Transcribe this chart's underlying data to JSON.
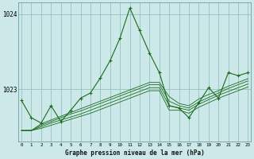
{
  "title": "Graphe pression niveau de la mer (hPa)",
  "bg_color": "#cce8e8",
  "grid_color": "#88bbbb",
  "line_color": "#1a6b1a",
  "ylim": [
    1022.3,
    1024.15
  ],
  "yticks": [
    1023,
    1024
  ],
  "ytick_labels": [
    "1023",
    "1024"
  ],
  "x_ticks": [
    0,
    1,
    2,
    3,
    4,
    5,
    6,
    7,
    8,
    9,
    10,
    11,
    12,
    13,
    14,
    15,
    16,
    17,
    18,
    19,
    20,
    21,
    22,
    23
  ],
  "main_series": [
    1022.85,
    1022.62,
    1022.55,
    1022.78,
    1022.57,
    1022.72,
    1022.88,
    1022.95,
    1023.15,
    1023.38,
    1023.68,
    1024.08,
    1023.78,
    1023.48,
    1023.22,
    1022.78,
    1022.75,
    1022.62,
    1022.82,
    1023.02,
    1022.88,
    1023.22,
    1023.18,
    1023.22
  ],
  "band_series": [
    [
      1022.45,
      1022.45,
      1022.48,
      1022.52,
      1022.56,
      1022.6,
      1022.64,
      1022.68,
      1022.73,
      1022.78,
      1022.83,
      1022.88,
      1022.93,
      1022.98,
      1022.98,
      1022.72,
      1022.72,
      1022.68,
      1022.76,
      1022.82,
      1022.88,
      1022.93,
      1022.98,
      1023.03
    ],
    [
      1022.45,
      1022.45,
      1022.5,
      1022.55,
      1022.59,
      1022.63,
      1022.67,
      1022.72,
      1022.77,
      1022.82,
      1022.87,
      1022.92,
      1022.97,
      1023.02,
      1023.02,
      1022.78,
      1022.75,
      1022.72,
      1022.8,
      1022.86,
      1022.92,
      1022.97,
      1023.02,
      1023.07
    ],
    [
      1022.45,
      1022.45,
      1022.52,
      1022.57,
      1022.62,
      1022.67,
      1022.71,
      1022.76,
      1022.81,
      1022.86,
      1022.91,
      1022.96,
      1023.01,
      1023.06,
      1023.06,
      1022.84,
      1022.78,
      1022.75,
      1022.83,
      1022.89,
      1022.95,
      1023.01,
      1023.06,
      1023.11
    ],
    [
      1022.45,
      1022.45,
      1022.54,
      1022.59,
      1022.64,
      1022.69,
      1022.74,
      1022.79,
      1022.84,
      1022.89,
      1022.94,
      1022.99,
      1023.04,
      1023.09,
      1023.09,
      1022.9,
      1022.81,
      1022.78,
      1022.87,
      1022.93,
      1022.98,
      1023.04,
      1023.09,
      1023.14
    ]
  ]
}
